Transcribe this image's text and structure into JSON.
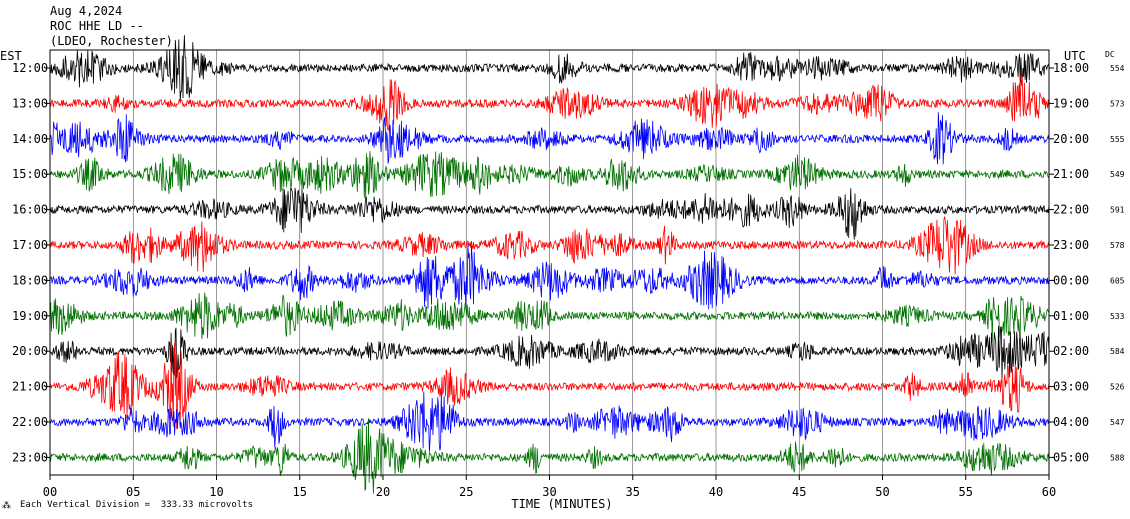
{
  "header": {
    "date": "Aug 4,2024",
    "station": "ROC HHE LD --",
    "network": "(LDEO, Rochester)"
  },
  "footer": {
    "scale_note": "Each Vertical Division =  333.33 microvolts",
    "corner_mark": "⁂"
  },
  "chart_data": {
    "type": "line",
    "title": "",
    "xlabel": "TIME (MINUTES)",
    "left_axis_label": "EST",
    "right_axis_label": "UTC",
    "dc_label": "DC",
    "xlim": [
      0,
      60
    ],
    "x_ticks": [
      "00",
      "05",
      "10",
      "15",
      "20",
      "25",
      "30",
      "35",
      "40",
      "45",
      "50",
      "55",
      "60"
    ],
    "grid": true,
    "trace_colors": [
      "#000000",
      "#ff0000",
      "#0000ff",
      "#007000"
    ],
    "rows": [
      {
        "est": "12:00",
        "utc": "18:00",
        "dc": "554"
      },
      {
        "est": "13:00",
        "utc": "19:00",
        "dc": "573"
      },
      {
        "est": "14:00",
        "utc": "20:00",
        "dc": "555"
      },
      {
        "est": "15:00",
        "utc": "21:00",
        "dc": "549"
      },
      {
        "est": "16:00",
        "utc": "22:00",
        "dc": "591"
      },
      {
        "est": "17:00",
        "utc": "23:00",
        "dc": "578"
      },
      {
        "est": "18:00",
        "utc": "00:00",
        "dc": "605"
      },
      {
        "est": "19:00",
        "utc": "01:00",
        "dc": "533"
      },
      {
        "est": "20:00",
        "utc": "02:00",
        "dc": "584"
      },
      {
        "est": "21:00",
        "utc": "03:00",
        "dc": "526"
      },
      {
        "est": "22:00",
        "utc": "04:00",
        "dc": "547"
      },
      {
        "est": "23:00",
        "utc": "05:00",
        "dc": "588"
      }
    ]
  }
}
